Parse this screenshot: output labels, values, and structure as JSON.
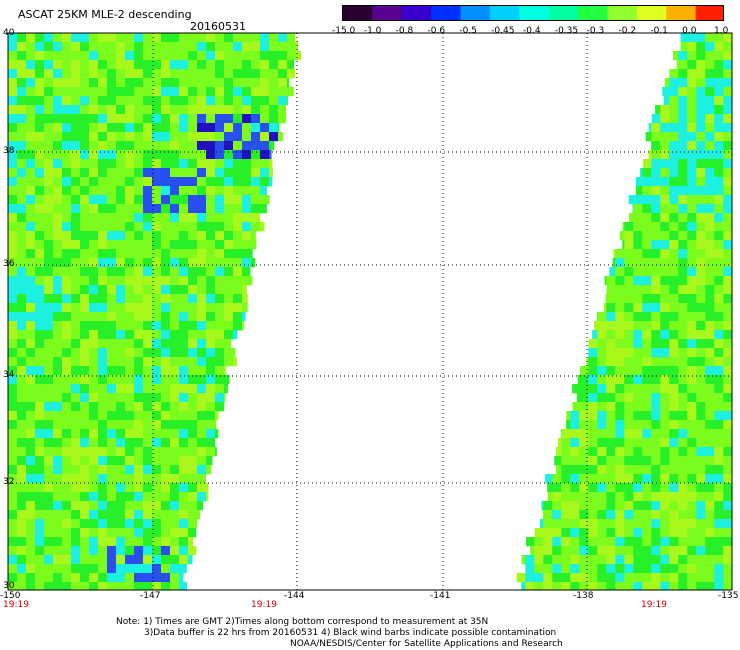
{
  "header": {
    "title": "ASCAT 25KM MLE-2 descending",
    "date": "20160531"
  },
  "colorbar": {
    "labels": [
      "-15.0",
      "-1.0",
      "-0.8",
      "-0.6",
      "-0.5",
      "-0.45",
      "-0.4",
      "-0.35",
      "-0.3",
      "-0.2",
      "-0.1",
      "0.0",
      "1.0"
    ],
    "colors": [
      "#2a0030",
      "#5a0090",
      "#3a00d0",
      "#0030ff",
      "#0090ff",
      "#00d0ff",
      "#00ffe0",
      "#00ffa0",
      "#20ff40",
      "#90ff30",
      "#e0ff20",
      "#ffb000",
      "#ff2000"
    ]
  },
  "axes": {
    "x_ticks": [
      "-150",
      "-147",
      "-144",
      "-141",
      "-138",
      "-135"
    ],
    "y_ticks": [
      "40",
      "38",
      "36",
      "34",
      "32",
      "30"
    ]
  },
  "time_labels": [
    "19:19",
    "19:19",
    "19:19"
  ],
  "notes": [
    "Note: 1) Times are GMT 2)Times along bottom correspond to measurement at 35N",
    "3)Data buffer is 22 hrs from 20160531 4) Black wind barbs indicate possible contamination",
    "NOAA/NESDIS/Center for Satellite Applications and Research"
  ],
  "colors": {
    "swath_base": "#7cfc1c",
    "swath_alt": "#a8f81c",
    "swath_green": "#28f028",
    "swath_cyan": "#1cf0e0",
    "swath_blue": "#2850f0",
    "swath_dark": "#2010c0",
    "time_label": "#cc0000"
  }
}
